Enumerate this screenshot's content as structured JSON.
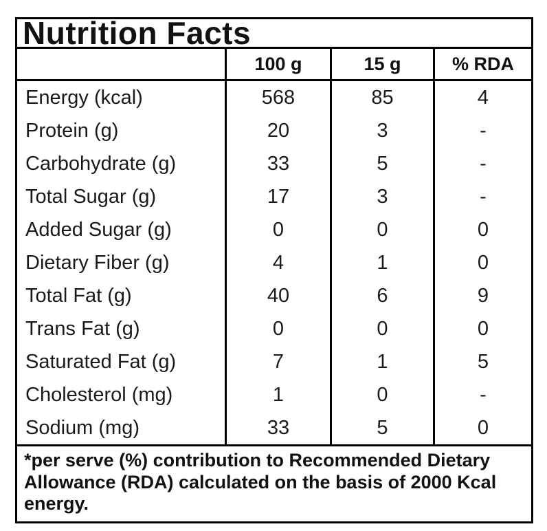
{
  "colors": {
    "border": "#000000",
    "background": "#ffffff",
    "text": "#151515"
  },
  "label": {
    "title": "Nutrition Facts",
    "columns": {
      "nutrient": "",
      "per_100g": "100 g",
      "per_serve": "15 g",
      "rda": "% RDA"
    },
    "rows": [
      {
        "name": "Energy (kcal)",
        "v100": "568",
        "v15": "85",
        "rda": "4"
      },
      {
        "name": "Protein (g)",
        "v100": "20",
        "v15": "3",
        "rda": "-"
      },
      {
        "name": "Carbohydrate (g)",
        "v100": "33",
        "v15": "5",
        "rda": "-"
      },
      {
        "name": "Total Sugar (g)",
        "v100": "17",
        "v15": "3",
        "rda": "-"
      },
      {
        "name": "Added Sugar (g)",
        "v100": "0",
        "v15": "0",
        "rda": "0"
      },
      {
        "name": "Dietary Fiber (g)",
        "v100": "4",
        "v15": "1",
        "rda": "0"
      },
      {
        "name": "Total Fat (g)",
        "v100": "40",
        "v15": "6",
        "rda": "9"
      },
      {
        "name": "Trans Fat (g)",
        "v100": "0",
        "v15": "0",
        "rda": "0"
      },
      {
        "name": "Saturated Fat (g)",
        "v100": "7",
        "v15": "1",
        "rda": "5"
      },
      {
        "name": "Cholesterol (mg)",
        "v100": "1",
        "v15": "0",
        "rda": "-"
      },
      {
        "name": "Sodium (mg)",
        "v100": "33",
        "v15": "5",
        "rda": "0"
      }
    ],
    "footnote": "*per serve (%) contribution to Recommended Dietary Allowance (RDA) calculated on the basis of 2000 Kcal energy."
  }
}
